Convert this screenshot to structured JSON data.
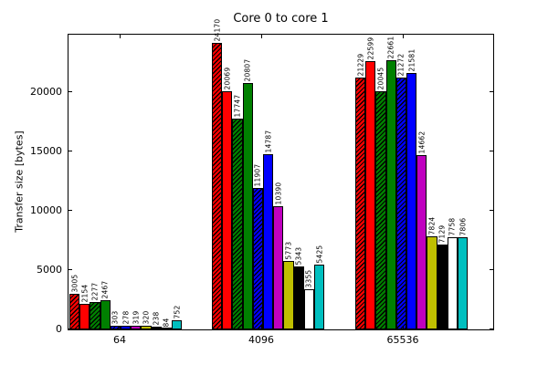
{
  "chart_data": {
    "type": "bar",
    "title": "Core 0 to core 1",
    "xlabel": "",
    "ylabel": "Transfer size [bytes]",
    "categories": [
      "64",
      "4096",
      "65536"
    ],
    "series": [
      {
        "name": "red-hatched",
        "color": "#ff0000",
        "hatch": "/",
        "values": [
          3005,
          24170,
          21229
        ]
      },
      {
        "name": "red",
        "color": "#ff0000",
        "hatch": null,
        "values": [
          2154,
          20069,
          22599
        ]
      },
      {
        "name": "green-hatched",
        "color": "#008000",
        "hatch": "/",
        "values": [
          2277,
          17747,
          20045
        ]
      },
      {
        "name": "green",
        "color": "#008000",
        "hatch": null,
        "values": [
          2467,
          20807,
          22661
        ]
      },
      {
        "name": "blue-hatched",
        "color": "#0000ff",
        "hatch": "/",
        "values": [
          303,
          11907,
          21272
        ]
      },
      {
        "name": "blue",
        "color": "#0000ff",
        "hatch": null,
        "values": [
          278,
          14787,
          21581
        ]
      },
      {
        "name": "magenta",
        "color": "#bf00bf",
        "hatch": null,
        "values": [
          319,
          10390,
          14662
        ]
      },
      {
        "name": "yellow",
        "color": "#bfbf00",
        "hatch": null,
        "values": [
          320,
          5773,
          7824
        ]
      },
      {
        "name": "black",
        "color": "#000000",
        "hatch": null,
        "values": [
          238,
          5343,
          7129
        ]
      },
      {
        "name": "white",
        "color": "#ffffff",
        "hatch": null,
        "values": [
          84,
          3355,
          7758
        ]
      },
      {
        "name": "cyan",
        "color": "#00bfbf",
        "hatch": null,
        "values": [
          752,
          5425,
          7806
        ]
      }
    ],
    "yticks": [
      0,
      5000,
      10000,
      15000,
      20000
    ],
    "ylim": [
      0,
      24850
    ],
    "grid": false,
    "legend": "none",
    "bar_value_labels_rotated": true,
    "bar_edge_color": "#000000",
    "background": "#ffffff"
  }
}
